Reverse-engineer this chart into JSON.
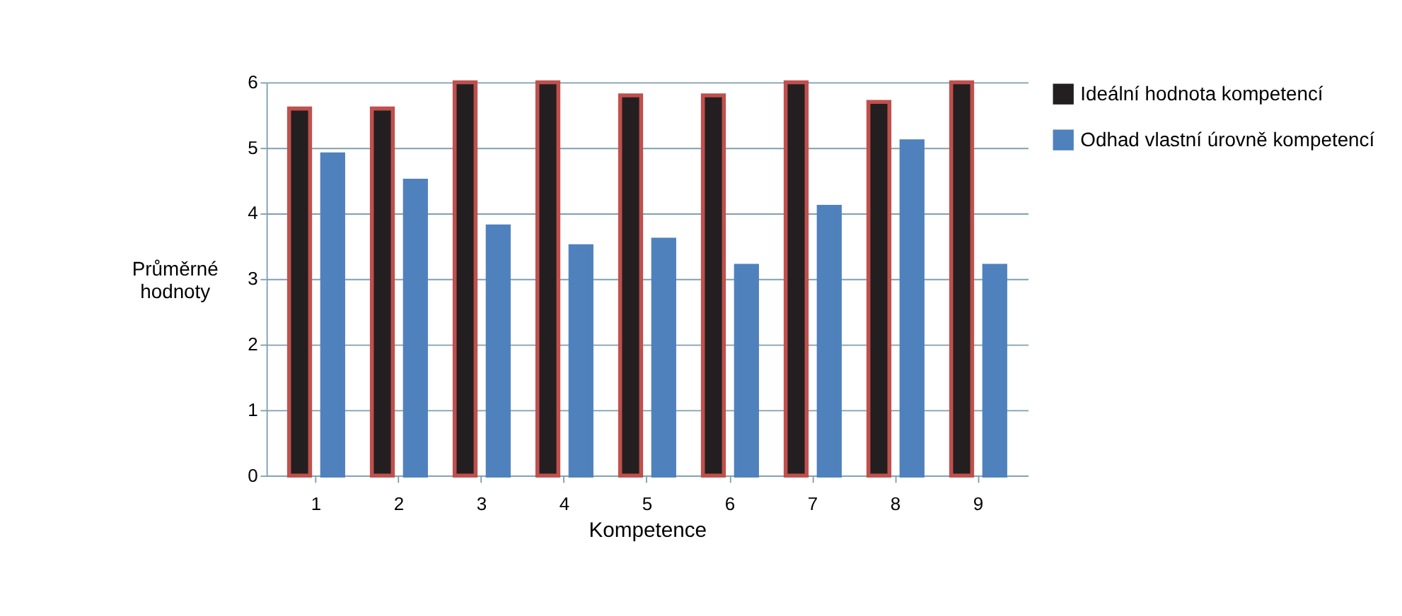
{
  "chart_data": {
    "type": "bar",
    "xlabel": "Kompetence",
    "ylabel": "Průměrné hodnoty",
    "categories": [
      "1",
      "2",
      "3",
      "4",
      "5",
      "6",
      "7",
      "8",
      "9"
    ],
    "series": [
      {
        "name": "Ideální hodnota kompetencí",
        "color": "#231f20",
        "values": [
          5.6,
          5.6,
          6.0,
          6.0,
          5.8,
          5.8,
          6.0,
          5.7,
          6.0
        ]
      },
      {
        "name": "Odhad vlastní úrovně kompetencí",
        "color": "#4f81bd",
        "values": [
          4.9,
          4.5,
          3.8,
          3.5,
          3.6,
          3.2,
          4.1,
          5.1,
          3.2
        ]
      }
    ],
    "ylim": [
      0,
      6
    ],
    "yticks": [
      0,
      1,
      2,
      3,
      4,
      5,
      6
    ],
    "grid": "y",
    "legend": "right"
  }
}
